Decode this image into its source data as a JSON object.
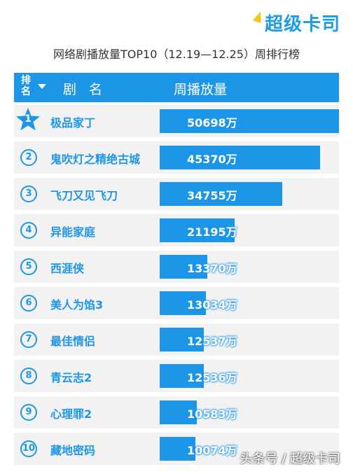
{
  "logo_text": "超级卡司",
  "title": "网络剧播放量TOP10（12.19—12.25）周排行榜",
  "header": {
    "rank": "排名",
    "name": "剧 名",
    "value": "周播放量"
  },
  "watermark": "头条号 / 超级卡司",
  "colors": {
    "accent": "#1e96e8",
    "row_bg": "#f2f2f2",
    "header_bg": "#1e96e8"
  },
  "chart_data": {
    "type": "bar",
    "orientation": "horizontal",
    "unit": "万",
    "ranks": [
      "1",
      "②",
      "③",
      "④",
      "⑤",
      "⑥",
      "⑦",
      "⑧",
      "⑨",
      "⑩"
    ],
    "categories": [
      "极品家丁",
      "鬼吹灯之精绝古城",
      "飞刀又见飞刀",
      "异能家庭",
      "西涯侠",
      "美人为馅3",
      "最佳情侣",
      "青云志2",
      "心理罪2",
      "藏地密码"
    ],
    "values": [
      50698,
      45370,
      34755,
      21195,
      13370,
      13034,
      12537,
      12536,
      10583,
      10074
    ],
    "labels": [
      "50698万",
      "45370万",
      "34755万",
      "21195万",
      "13370万",
      "13034万",
      "12537万",
      "12536万",
      "10583万",
      "10074万"
    ],
    "xlim": [
      0,
      50698
    ]
  }
}
